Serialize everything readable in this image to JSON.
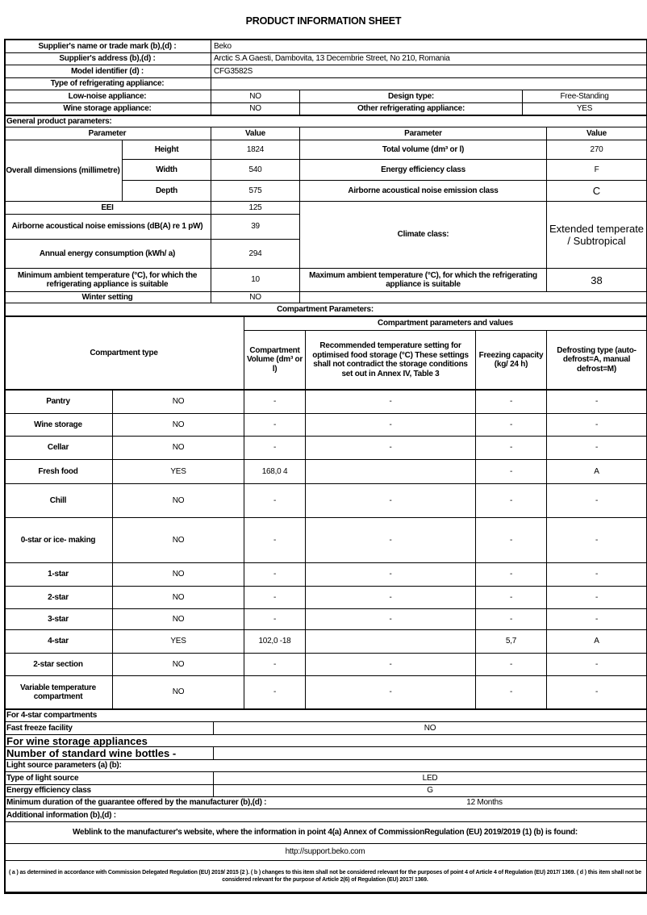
{
  "title": "PRODUCT INFORMATION SHEET",
  "supplier": {
    "name_label": "Supplier's name or trade mark (b),(d) :",
    "name_value": "Beko",
    "address_label": "Supplier's address (b),(d) :",
    "address_value": "Arctic S.A  Gaesti, Dambovita, 13 Decembrie Street, No 210, Romania",
    "model_label": "Model identifier (d) :",
    "model_value": "CFG3582S",
    "type_label": "Type of refrigerating appliance:",
    "low_noise_label": "Low-noise appliance:",
    "low_noise_value": "NO",
    "design_label": "Design type:",
    "design_value": "Free-Standing",
    "wine_label": "Wine storage appliance:",
    "wine_value": "NO",
    "other_label": "Other refrigerating appliance:",
    "other_value": "YES"
  },
  "general": {
    "heading": "General product parameters:",
    "param_header": "Parameter",
    "value_header": "Value",
    "dims_label": "Overall dimensions (millimetre)",
    "height_label": "Height",
    "height_value": "1824",
    "width_label": "Width",
    "width_value": "540",
    "depth_label": "Depth",
    "depth_value": "575",
    "total_volume_label": "Total volume (dm³ or l)",
    "total_volume_value": "270",
    "energy_class_label": "Energy efficiency class",
    "energy_class_value": "F",
    "noise_class_label": "Airborne acoustical noise emission class",
    "noise_class_value": "C",
    "eei_label": "EEI",
    "eei_value": "125",
    "noise_label": "Airborne acoustical noise emissions (dB(A) re 1 pW)",
    "noise_value": "39",
    "annual_label": "Annual energy consumption (kWh/ a)",
    "annual_value": "294",
    "climate_label": "Climate class:",
    "climate_value": "Extended temperate / Subtropical",
    "min_temp_label": "Minimum ambient temperature (°C), for which the refrigerating appliance is suitable",
    "min_temp_value": "10",
    "max_temp_label": "Maximum ambient temperature (°C), for which the refrigerating appliance is suitable",
    "max_temp_value": "38",
    "winter_label": "Winter setting",
    "winter_value": "NO"
  },
  "compartments": {
    "heading": "Compartment Parameters:",
    "type_header": "Compartment type",
    "group_header": "Compartment parameters and values",
    "volume_header": "Compartment Volume (dm³ or l)",
    "temp_header": "Recommended temperature setting for optimised food storage (°C) These settings shall not contradict the storage conditions set out in Annex IV, Table 3",
    "freezing_header": "Freezing capacity (kg/ 24 h)",
    "defrost_header": "Defrosting type (auto-defrost=A, manual defrost=M)",
    "rows": [
      {
        "name": "Pantry",
        "present": "NO",
        "volume": "-",
        "temp": "-",
        "freezing": "-",
        "defrost": "-"
      },
      {
        "name": "Wine storage",
        "present": "NO",
        "volume": "-",
        "temp": "-",
        "freezing": "-",
        "defrost": "-"
      },
      {
        "name": "Cellar",
        "present": "NO",
        "volume": "-",
        "temp": "-",
        "freezing": "-",
        "defrost": "-"
      },
      {
        "name": "Fresh food",
        "present": "YES",
        "volume": "168,0 4",
        "temp": "",
        "freezing": "-",
        "defrost": "A"
      },
      {
        "name": "Chill",
        "present": "NO",
        "volume": "-",
        "temp": "-",
        "freezing": "-",
        "defrost": "-"
      },
      {
        "name": "0-star or ice- making",
        "present": "NO",
        "volume": "-",
        "temp": "-",
        "freezing": "-",
        "defrost": "-"
      },
      {
        "name": "1-star",
        "present": "NO",
        "volume": "-",
        "temp": "-",
        "freezing": "-",
        "defrost": "-"
      },
      {
        "name": "2-star",
        "present": "NO",
        "volume": "-",
        "temp": "-",
        "freezing": "-",
        "defrost": "-"
      },
      {
        "name": "3-star",
        "present": "NO",
        "volume": "-",
        "temp": "-",
        "freezing": "-",
        "defrost": "-"
      },
      {
        "name": "4-star",
        "present": "YES",
        "volume": "102,0 -18",
        "temp": "",
        "freezing": "5,7",
        "defrost": "A"
      },
      {
        "name": "2-star section",
        "present": "NO",
        "volume": "-",
        "temp": "-",
        "freezing": "-",
        "defrost": "-"
      },
      {
        "name": "Variable temperature compartment",
        "present": "NO",
        "volume": "-",
        "temp": "-",
        "freezing": "-",
        "defrost": "-"
      }
    ]
  },
  "four_star": {
    "heading": "For 4-star compartments",
    "fast_freeze_label": "Fast freeze facility",
    "fast_freeze_value": "NO"
  },
  "wine": {
    "heading": "For wine storage appliances",
    "bottles_label": "Number of standard wine bottles -",
    "bottles_value": ""
  },
  "light": {
    "heading": "Light source parameters (a) (b):",
    "type_label": "Type of light source",
    "type_value": "LED",
    "class_label": "Energy efficiency class",
    "class_value": "G"
  },
  "guarantee": {
    "label": "Minimum duration of the guarantee offered by the manufacturer (b),(d) :",
    "value": "12 Months"
  },
  "additional": {
    "label": "Additional information (b),(d) :"
  },
  "weblink": {
    "label": "Weblink to the manufacturer's website, where the information in point 4(a) Annex of CommissionRegulation (EU) 2019/2019 (1) (b) is found:",
    "url": "http://support.beko.com"
  },
  "footnote": "( a ) as determined in accordance with Commission Delegated Regulation (EU) 2019/ 2015 (2 ). ( b ) changes to this item shall not be considered relevant for the purposes of point 4 of Article 4 of Regulation (EU) 2017/ 1369. ( d ) this item shall not be considered relevant for the purpose of Article 2(6) of Regulation (EU) 2017/ 1369."
}
